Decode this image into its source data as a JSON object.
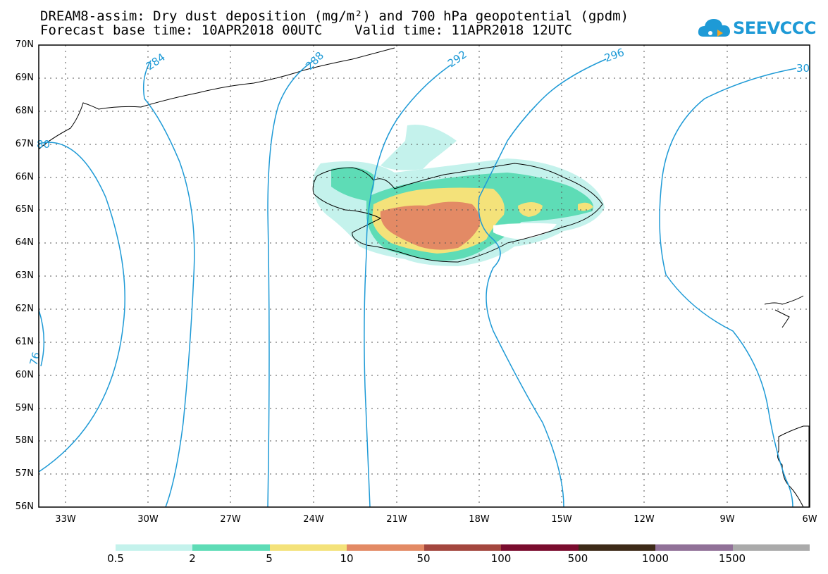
{
  "header": {
    "title_line1": "DREAM8-assim: Dry dust deposition (mg/m²) and 700 hPa geopotential (gpdm)",
    "title_line2": "Forecast base time: 10APR2018 00UTC    Valid time: 11APR2018 12UTC"
  },
  "logo": {
    "text": "SEEVCCC",
    "icon": "cloud-icon",
    "color": "#1e9ad6"
  },
  "map": {
    "lat_labels": [
      "70N",
      "69N",
      "68N",
      "67N",
      "66N",
      "65N",
      "64N",
      "63N",
      "62N",
      "61N",
      "60N",
      "59N",
      "58N",
      "57N",
      "56N"
    ],
    "lon_labels": [
      "33W",
      "30W",
      "27W",
      "24W",
      "21W",
      "18W",
      "15W",
      "12W",
      "9W",
      "6W"
    ],
    "contour_color": "#1e9ad6",
    "contour_labels": [
      "284",
      "288",
      "292",
      "296",
      "30",
      "76",
      "80"
    ]
  },
  "legend": {
    "colors": [
      "#c4f2ec",
      "#5edcb6",
      "#f4e27a",
      "#e38a65",
      "#a3463e",
      "#7a0c2e",
      "#3d2a18",
      "#917198",
      "#aaaaaa"
    ],
    "labels": [
      "0.5",
      "2",
      "5",
      "10",
      "50",
      "100",
      "500",
      "1000",
      "1500"
    ]
  }
}
